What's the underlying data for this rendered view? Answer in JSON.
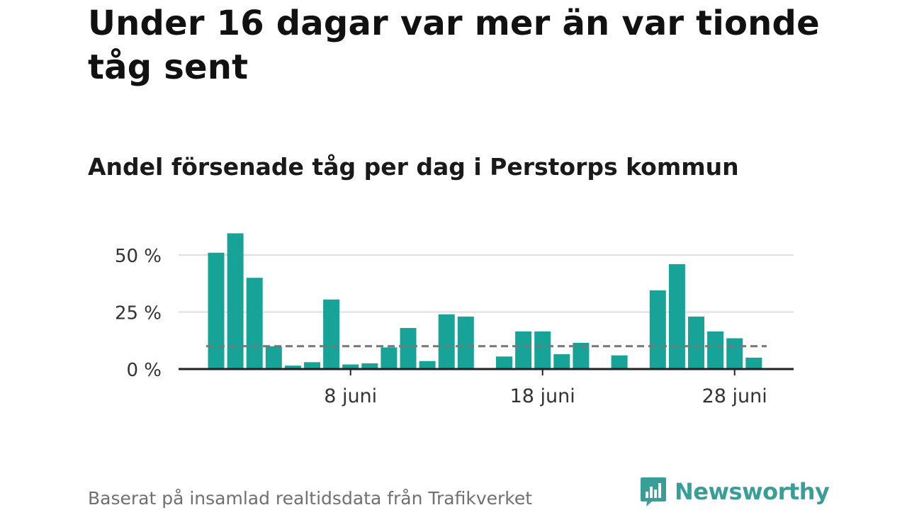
{
  "headline": "Under 16 dagar var mer än var tionde tåg sent",
  "footnote": "Baserat på insamlad realtidsdata från Trafikverket",
  "brand": {
    "name": "Newsworthy",
    "icon": "bar-chart-speech-bubble-icon",
    "color": "#3a9e98"
  },
  "colors": {
    "bar": "#17a398",
    "reference_line": "#777777",
    "grid": "#dddddd",
    "axis": "#222222"
  },
  "chart_data": {
    "type": "bar",
    "title": "Andel försenade tåg per dag i Perstorps kommun",
    "x_unit": "day of June",
    "x": [
      1,
      2,
      3,
      4,
      5,
      6,
      7,
      8,
      9,
      10,
      11,
      12,
      13,
      14,
      15,
      16,
      17,
      18,
      19,
      20,
      21,
      22,
      23,
      24,
      25,
      26,
      27,
      28,
      29,
      30
    ],
    "values": [
      51,
      59.5,
      40,
      10,
      1.5,
      3,
      30.5,
      2,
      2.5,
      9.5,
      18,
      3.5,
      24,
      23,
      null,
      5.5,
      16.5,
      16.5,
      6.5,
      11.5,
      null,
      6,
      null,
      34.5,
      46,
      23,
      16.5,
      13.5,
      5,
      null
    ],
    "y_ticks": [
      0,
      25,
      50
    ],
    "y_tick_labels": [
      "0 %",
      "25 %",
      "50 %"
    ],
    "x_ticks": [
      8,
      18,
      28
    ],
    "x_tick_labels": [
      "8 juni",
      "18 juni",
      "28 juni"
    ],
    "reference_line": 10,
    "ylim": [
      0,
      62
    ],
    "grid": true
  }
}
